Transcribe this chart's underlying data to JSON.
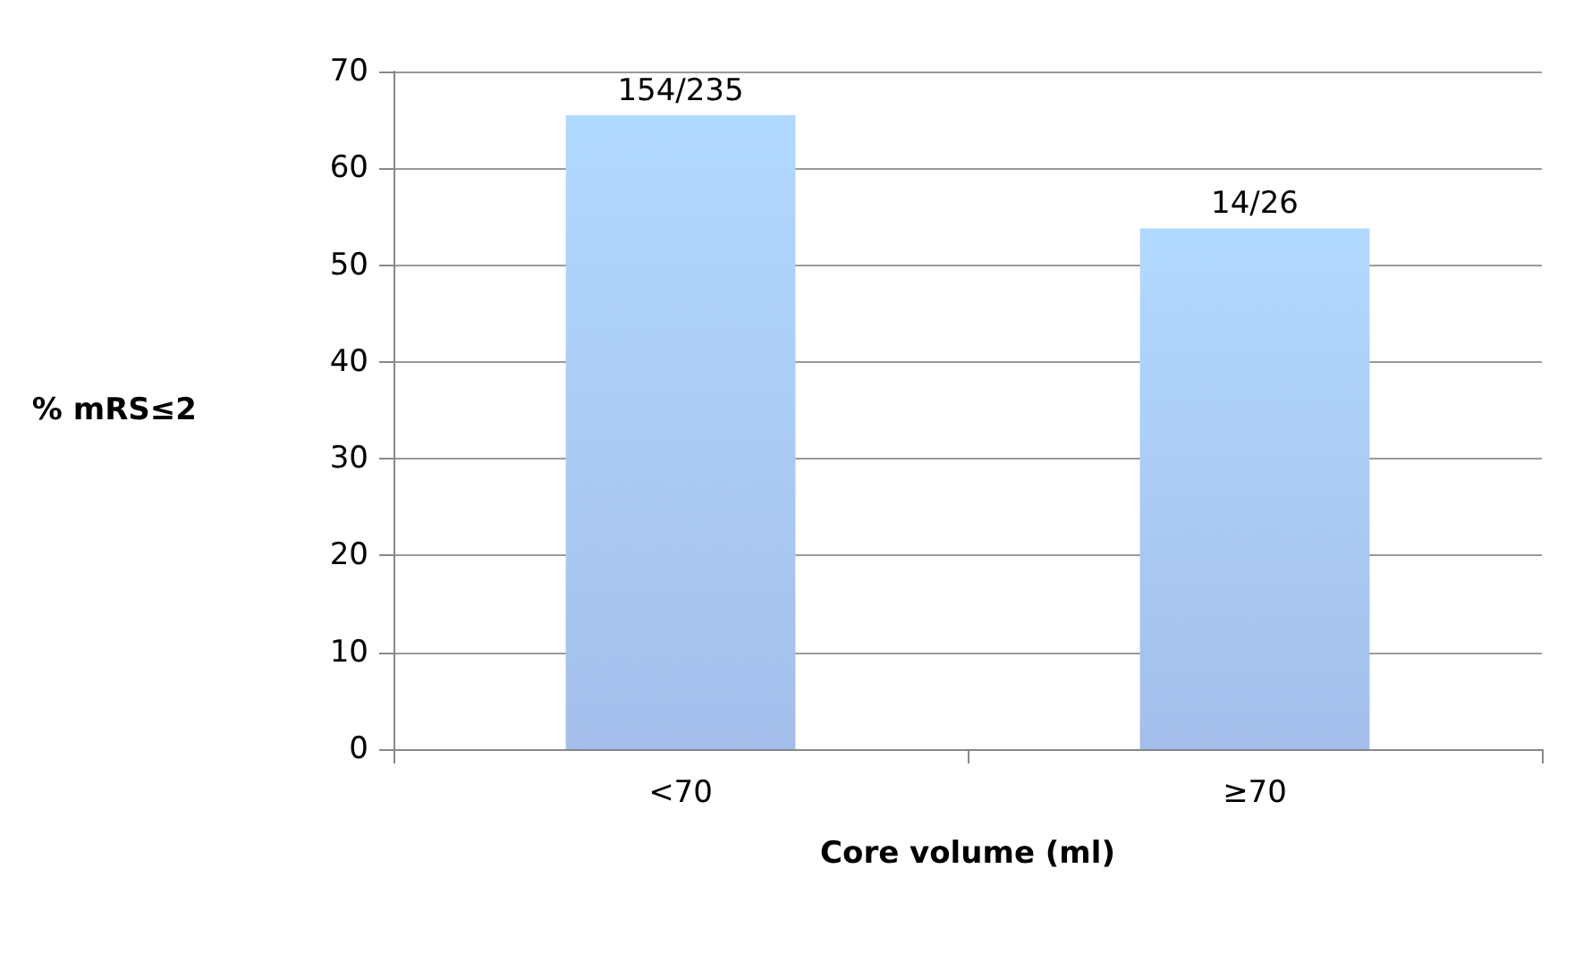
{
  "chart_data": {
    "type": "bar",
    "xlabel": "Core volume (ml)",
    "ylabel": "% mRS≤2",
    "categories": [
      "<70",
      "≥70"
    ],
    "values": [
      65.5,
      53.8
    ],
    "value_labels": [
      "154/235",
      "14/26"
    ],
    "color": "#8eaee6",
    "ylim": [
      0,
      70
    ],
    "yticks": [
      0,
      10,
      20,
      30,
      40,
      50,
      60,
      70
    ],
    "grid": "y"
  }
}
